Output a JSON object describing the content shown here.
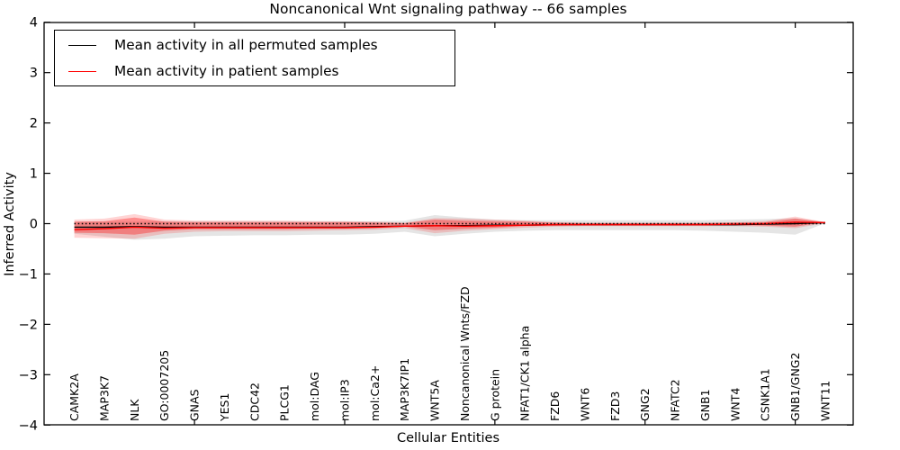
{
  "legend": {
    "items": [
      {
        "label": "Mean activity in all permuted samples",
        "color": "#000000"
      },
      {
        "label": "Mean activity in patient samples",
        "color": "#ff0000"
      }
    ],
    "position": "upper left"
  },
  "chart_data": {
    "type": "line",
    "title": "Noncanonical Wnt signaling pathway -- 66 samples",
    "xlabel": "Cellular Entities",
    "ylabel": "Inferred Activity",
    "ylim": [
      -4,
      4
    ],
    "grid": false,
    "legend_position": "upper left",
    "ytick_values": [
      4,
      3,
      2,
      1,
      0,
      -1,
      -2,
      -3,
      -4
    ],
    "ytick_labels": [
      "4",
      "3",
      "2",
      "1",
      "0",
      "−1",
      "−2",
      "−3",
      "−4"
    ],
    "xtick_minor_indices": [
      4,
      9,
      14,
      19,
      24
    ],
    "categories": [
      "CAMK2A",
      "MAP3K7",
      "NLK",
      "GO:0007205",
      "GNAS",
      "YES1",
      "CDC42",
      "PLCG1",
      "mol:DAG",
      "mol:IP3",
      "mol:Ca2+",
      "MAP3K7IP1",
      "WNT5A",
      "Noncanonical Wnts/FZD",
      "G protein",
      "NFAT1/CK1 alpha",
      "FZD6",
      "WNT6",
      "FZD3",
      "GNG2",
      "NFATC2",
      "GNB1",
      "WNT4",
      "CSNK1A1",
      "GNB1/GNG2",
      "WNT11"
    ],
    "series": [
      {
        "name": "Mean activity in all permuted samples",
        "color": "#000000",
        "style": "solid",
        "values": [
          -0.07,
          -0.07,
          -0.06,
          -0.07,
          -0.07,
          -0.07,
          -0.07,
          -0.07,
          -0.07,
          -0.07,
          -0.06,
          -0.05,
          -0.04,
          -0.04,
          -0.03,
          -0.03,
          -0.02,
          -0.02,
          -0.02,
          -0.02,
          -0.02,
          -0.02,
          -0.02,
          -0.01,
          0.0,
          0.02
        ]
      },
      {
        "name": "Mean activity in patient samples",
        "color": "#ff0000",
        "style": "solid",
        "values": [
          -0.12,
          -0.1,
          -0.07,
          -0.09,
          -0.08,
          -0.08,
          -0.08,
          -0.08,
          -0.08,
          -0.08,
          -0.07,
          -0.05,
          -0.04,
          -0.05,
          -0.04,
          -0.03,
          -0.02,
          -0.02,
          -0.02,
          -0.02,
          -0.02,
          -0.02,
          -0.01,
          0.0,
          0.03,
          0.02
        ]
      },
      {
        "name": "zero reference",
        "color": "#000000",
        "style": "dotted",
        "values": [
          0,
          0,
          0,
          0,
          0,
          0,
          0,
          0,
          0,
          0,
          0,
          0,
          0,
          0,
          0,
          0,
          0,
          0,
          0,
          0,
          0,
          0,
          0,
          0,
          0,
          0
        ]
      }
    ],
    "bands": [
      {
        "name": "permuted samples range",
        "color": "rgba(0,0,0,0.10)",
        "upper": [
          0.04,
          0.04,
          0.04,
          0.05,
          0.05,
          0.05,
          0.05,
          0.05,
          0.05,
          0.05,
          0.05,
          0.06,
          0.17,
          0.12,
          0.08,
          0.07,
          0.07,
          0.07,
          0.07,
          0.07,
          0.07,
          0.07,
          0.08,
          0.09,
          0.11,
          0.03
        ],
        "lower": [
          -0.2,
          -0.26,
          -0.32,
          -0.3,
          -0.25,
          -0.24,
          -0.23,
          -0.23,
          -0.22,
          -0.22,
          -0.2,
          -0.16,
          -0.25,
          -0.2,
          -0.16,
          -0.14,
          -0.13,
          -0.13,
          -0.13,
          -0.13,
          -0.13,
          -0.14,
          -0.16,
          -0.18,
          -0.22,
          0.01
        ]
      },
      {
        "name": "patient samples outer range",
        "color": "rgba(255,0,0,0.17)",
        "upper": [
          0.08,
          0.1,
          0.19,
          0.08,
          0.06,
          0.06,
          0.06,
          0.06,
          0.05,
          0.05,
          0.04,
          0.02,
          0.11,
          0.1,
          0.08,
          0.06,
          0.03,
          0.02,
          0.02,
          0.02,
          0.02,
          0.02,
          0.03,
          0.05,
          0.14,
          0.03
        ],
        "lower": [
          -0.28,
          -0.29,
          -0.3,
          -0.2,
          -0.16,
          -0.15,
          -0.15,
          -0.15,
          -0.14,
          -0.13,
          -0.12,
          -0.09,
          -0.19,
          -0.14,
          -0.11,
          -0.08,
          -0.06,
          -0.05,
          -0.05,
          -0.05,
          -0.05,
          -0.05,
          -0.05,
          -0.06,
          -0.09,
          0.01
        ],
        "legend": false
      },
      {
        "name": "patient samples inner range",
        "color": "rgba(255,0,0,0.33)",
        "upper": [
          0.04,
          0.05,
          0.12,
          0.04,
          0.03,
          0.03,
          0.03,
          0.03,
          0.03,
          0.03,
          0.02,
          0.01,
          0.08,
          0.06,
          0.05,
          0.04,
          0.02,
          0.01,
          0.01,
          0.01,
          0.01,
          0.01,
          0.02,
          0.03,
          0.1,
          0.03
        ],
        "lower": [
          -0.18,
          -0.19,
          -0.22,
          -0.14,
          -0.11,
          -0.11,
          -0.11,
          -0.11,
          -0.1,
          -0.1,
          -0.09,
          -0.06,
          -0.13,
          -0.1,
          -0.08,
          -0.05,
          -0.04,
          -0.03,
          -0.03,
          -0.03,
          -0.03,
          -0.03,
          -0.03,
          -0.04,
          -0.06,
          0.03
        ]
      }
    ]
  }
}
